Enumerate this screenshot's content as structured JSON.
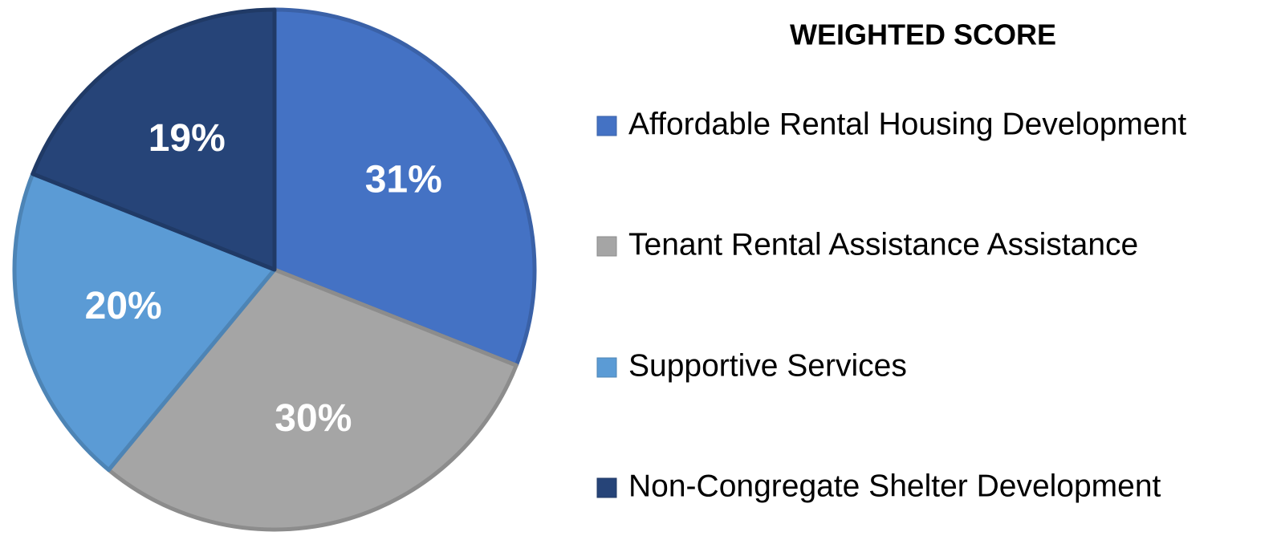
{
  "chart_data": {
    "type": "pie",
    "title": "WEIGHTED SCORE",
    "categories": [
      "Affordable Rental Housing Development",
      "Tenant Rental Assistance Assistance",
      "Supportive Services",
      "Non-Congregate Shelter Development"
    ],
    "values": [
      31,
      30,
      20,
      19
    ],
    "value_labels": [
      "31%",
      "30%",
      "20%",
      "19%"
    ],
    "colors": [
      "#4472c4",
      "#a5a5a5",
      "#5b9bd5",
      "#264478"
    ],
    "legend": "right"
  }
}
